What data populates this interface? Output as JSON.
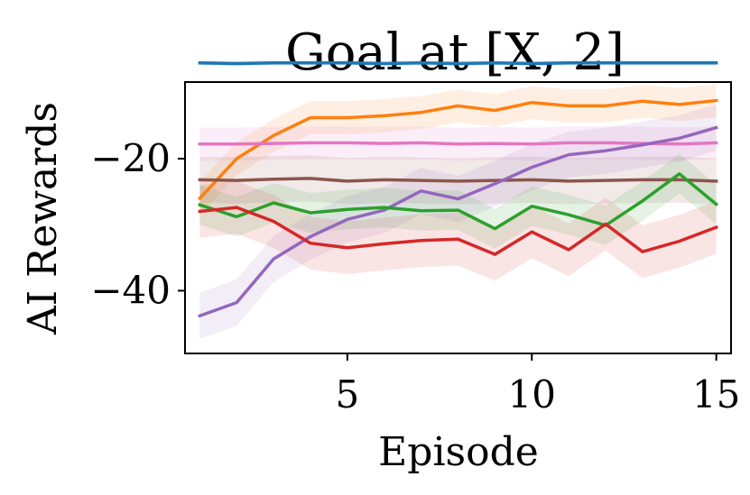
{
  "chart_data": {
    "type": "line",
    "title": "Goal at [X, 2]",
    "xlabel": "Episode",
    "ylabel": "AI Rewards",
    "xlim": [
      0.6,
      15.4
    ],
    "ylim": [
      -49.5,
      -8.4
    ],
    "xticks": [
      5,
      10,
      15
    ],
    "xtick_labels": [
      "5",
      "10",
      "15"
    ],
    "yticks": [
      -20,
      -40
    ],
    "ytick_labels": [
      "−20",
      "−40"
    ],
    "grid": false,
    "x": [
      1,
      2,
      3,
      4,
      5,
      6,
      7,
      8,
      9,
      10,
      11,
      12,
      13,
      14,
      15
    ],
    "series": [
      {
        "color": "#1f77b4",
        "values": [
          -5.5,
          -5.6,
          -5.5,
          -5.5,
          -5.5,
          -5.6,
          -5.5,
          -5.6,
          -5.5,
          -5.6,
          -5.5,
          -5.5,
          -5.5,
          -5.5,
          -5.5
        ],
        "band": 0.4
      },
      {
        "color": "#ff7f0e",
        "values": [
          -26.0,
          -20.0,
          -16.5,
          -13.8,
          -13.8,
          -13.5,
          -13.0,
          -12.0,
          -12.7,
          -11.5,
          -12.0,
          -12.0,
          -11.3,
          -11.8,
          -11.2
        ],
        "band": 2.5
      },
      {
        "color": "#e377c2",
        "values": [
          -17.8,
          -17.8,
          -17.7,
          -17.6,
          -17.6,
          -17.7,
          -17.6,
          -17.8,
          -17.7,
          -17.8,
          -17.6,
          -17.6,
          -17.7,
          -17.8,
          -17.6
        ],
        "band": 2.5
      },
      {
        "color": "#8c564b",
        "values": [
          -23.2,
          -23.3,
          -23.1,
          -23.0,
          -23.4,
          -23.2,
          -23.3,
          -23.4,
          -23.3,
          -23.2,
          -23.4,
          -23.3,
          -23.2,
          -23.2,
          -23.4
        ],
        "band": 3.5
      },
      {
        "color": "#9467bd",
        "values": [
          -43.8,
          -41.8,
          -35.2,
          -31.8,
          -29.2,
          -27.8,
          -24.9,
          -26.1,
          -23.8,
          -21.3,
          -19.4,
          -18.8,
          -17.9,
          -16.9,
          -15.3
        ],
        "band": 3.5
      },
      {
        "color": "#2ca02c",
        "values": [
          -27.0,
          -28.8,
          -26.7,
          -28.2,
          -27.7,
          -27.4,
          -27.9,
          -27.8,
          -30.6,
          -27.2,
          -28.5,
          -30.1,
          -26.4,
          -22.3,
          -26.9
        ],
        "band": 3.0
      },
      {
        "color": "#d62728",
        "values": [
          -28.0,
          -27.4,
          -29.5,
          -32.8,
          -33.5,
          -32.9,
          -32.4,
          -32.2,
          -34.5,
          -31.1,
          -33.8,
          -29.9,
          -34.1,
          -32.5,
          -30.4
        ],
        "band": 4.0
      }
    ]
  }
}
